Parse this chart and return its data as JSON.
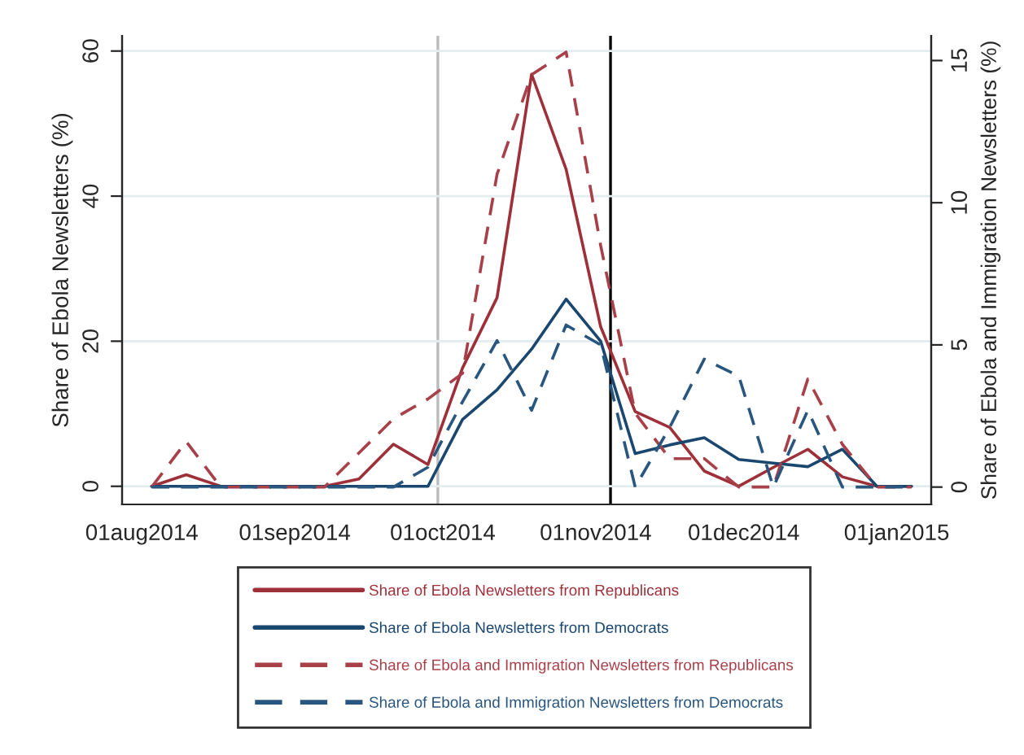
{
  "chart_data": {
    "type": "line",
    "ylabel": "Share of Ebola Newsletters (%)",
    "y2label": "Share of Ebola and Immigration Newsletters (%)",
    "x": [
      "2014-08-03",
      "2014-08-10",
      "2014-08-17",
      "2014-08-24",
      "2014-08-31",
      "2014-09-07",
      "2014-09-14",
      "2014-09-21",
      "2014-09-28",
      "2014-10-05",
      "2014-10-12",
      "2014-10-19",
      "2014-10-26",
      "2014-11-02",
      "2014-11-09",
      "2014-11-16",
      "2014-11-23",
      "2014-11-30",
      "2014-12-07",
      "2014-12-14",
      "2014-12-21",
      "2014-12-28",
      "2015-01-04"
    ],
    "series": [
      {
        "name": "Share of Ebola Newsletters from Republicans",
        "color": "#9e3039",
        "line_style": "solid",
        "values": [
          0,
          1.6,
          0,
          0,
          0,
          0,
          1,
          5.8,
          3,
          16.3,
          26,
          56.8,
          43.7,
          22,
          10.3,
          8.1,
          2.1,
          0,
          2.6,
          5.1,
          1.3,
          0,
          0
        ]
      },
      {
        "name": "Share of Ebola Newsletters from Democrats",
        "color": "#1a476f",
        "line_style": "solid",
        "values": [
          0,
          0,
          0,
          0,
          0,
          0,
          0,
          0,
          0,
          9.2,
          13.3,
          18.9,
          25.8,
          20,
          4.5,
          5.7,
          6.7,
          3.7,
          3.2,
          2.7,
          5.1,
          0,
          0
        ]
      },
      {
        "name": "Share of Ebola and Immigration Newsletters from Republicans",
        "color": "#a8404a",
        "line_style": "dashed",
        "axis": "y2",
        "values": [
          0,
          1.6,
          0,
          0,
          0,
          0,
          1.2,
          2.4,
          3.1,
          4,
          11,
          14.5,
          15.3,
          8.5,
          2.6,
          1,
          1,
          0,
          0,
          3.8,
          1.5,
          0,
          0
        ]
      },
      {
        "name": "Share of Ebola and Immigration Newsletters from Democrats",
        "color": "#28567e",
        "line_style": "dashed",
        "axis": "y2",
        "values": [
          0,
          0,
          0,
          0,
          0,
          0,
          0,
          0,
          0.7,
          3,
          5.15,
          2.7,
          5.7,
          5,
          0,
          2.1,
          4.5,
          3.9,
          0,
          2.7,
          0,
          0,
          0
        ]
      }
    ],
    "xlim": [
      "2014-07-28",
      "2015-01-08"
    ],
    "xticks": [
      {
        "value": "2014-08-01",
        "label": "01aug2014"
      },
      {
        "value": "2014-09-01",
        "label": "01sep2014"
      },
      {
        "value": "2014-10-01",
        "label": "01oct2014"
      },
      {
        "value": "2014-11-01",
        "label": "01nov2014"
      },
      {
        "value": "2014-12-01",
        "label": "01dec2014"
      },
      {
        "value": "2015-01-01",
        "label": "01jan2015"
      }
    ],
    "ylim": [
      -2.5,
      62.1
    ],
    "yticks": [
      0,
      20,
      40,
      60
    ],
    "y2lim": [
      -0.61,
      15.87
    ],
    "y2ticks": [
      0,
      5,
      10,
      15
    ],
    "ref_lines": [
      {
        "axis": "x",
        "value": "2014-09-30",
        "color": "#bbbbbb"
      },
      {
        "axis": "x",
        "value": "2014-11-04",
        "color": "#000000"
      }
    ],
    "grid": "y",
    "legend": "bottom"
  }
}
